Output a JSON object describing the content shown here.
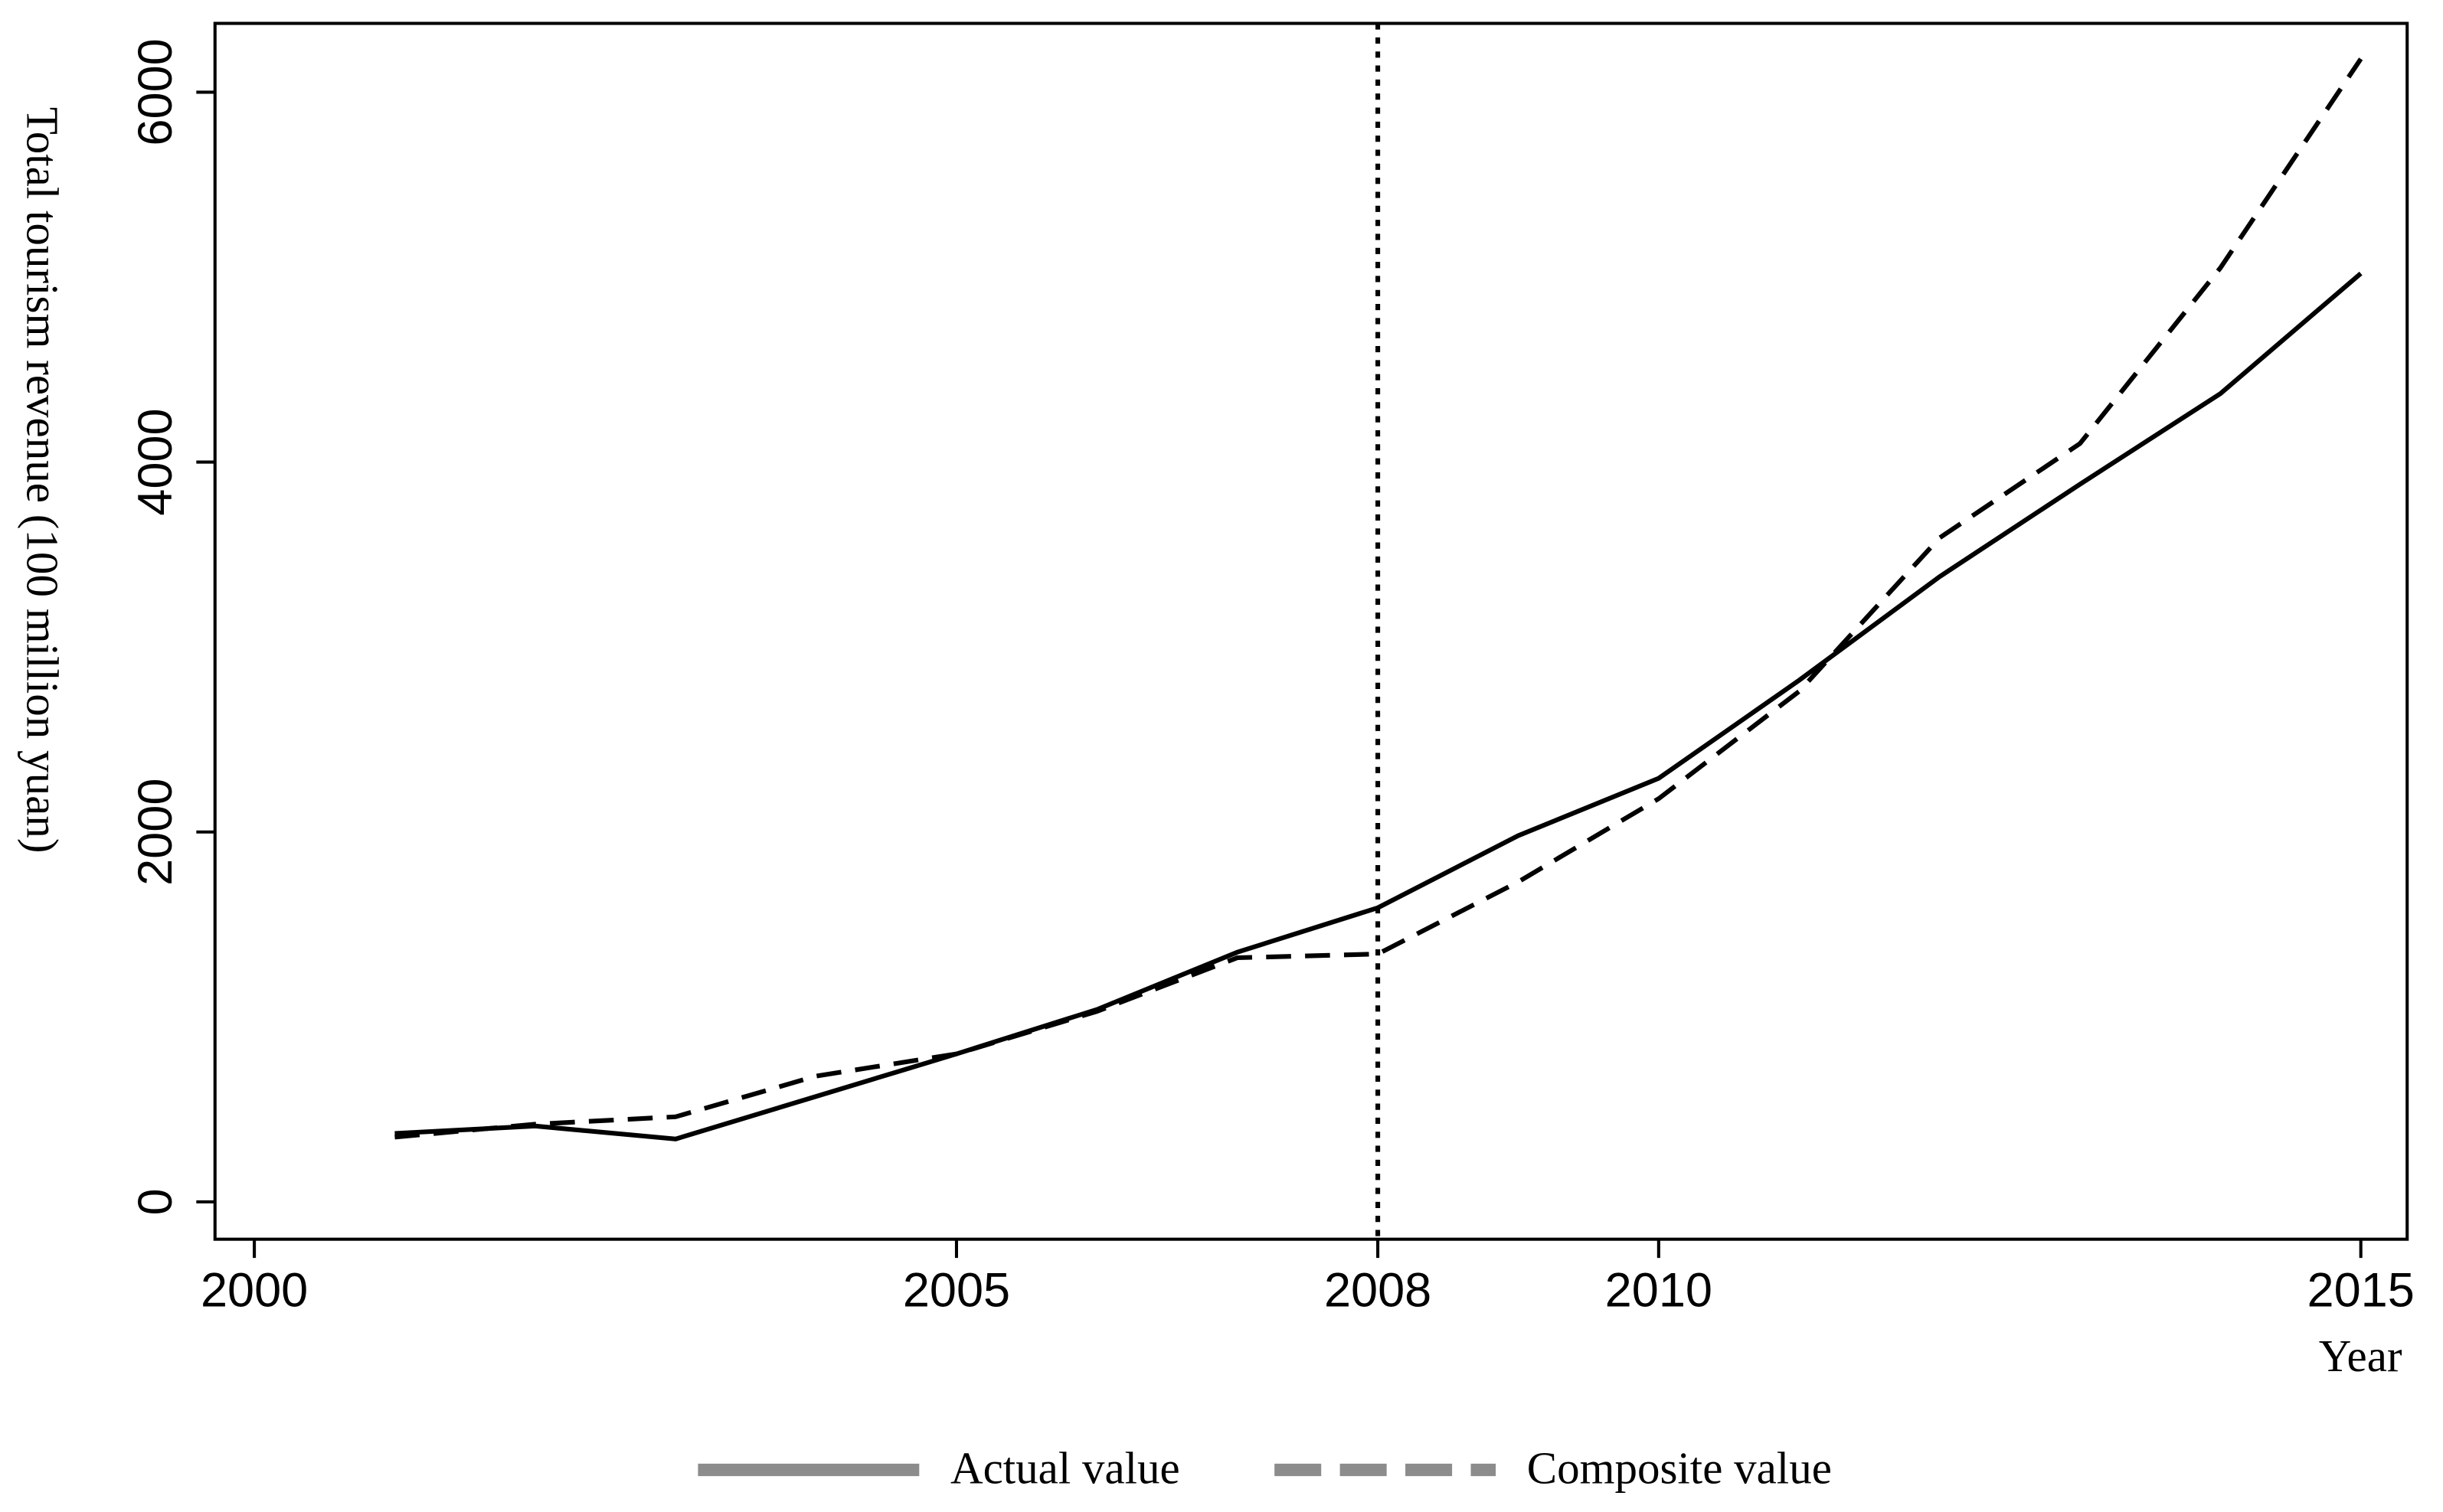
{
  "chart_data": {
    "type": "line",
    "y_label": "Total tourism revenue (100 million yuan)",
    "x_label": "Year",
    "x": [
      2001,
      2002,
      2003,
      2004,
      2005,
      2006,
      2007,
      2008,
      2009,
      2010,
      2011,
      2012,
      2013,
      2014,
      2015
    ],
    "series": [
      {
        "name": "Actual value",
        "color": "#000000",
        "dash": "solid",
        "legend_color": "#8c8c8c",
        "values": [
          370,
          410,
          340,
          570,
          800,
          1040,
          1350,
          1590,
          1980,
          2290,
          2820,
          3380,
          3880,
          4370,
          5020
        ]
      },
      {
        "name": "Composite value",
        "color": "#000000",
        "dash": "dashed",
        "legend_color": "#8c8c8c",
        "values": [
          350,
          420,
          460,
          680,
          800,
          1030,
          1320,
          1340,
          1730,
          2180,
          2760,
          3590,
          4100,
          5050,
          6180
        ]
      }
    ],
    "xlim": [
      1999.72,
      2015.33
    ],
    "ylim": [
      -202,
      6372
    ],
    "xticks": [
      2000,
      2005,
      2008,
      2010,
      2015
    ],
    "yticks": [
      0,
      2000,
      4000,
      6000
    ],
    "vline": 2008,
    "grid": false,
    "legend": "bottom"
  }
}
